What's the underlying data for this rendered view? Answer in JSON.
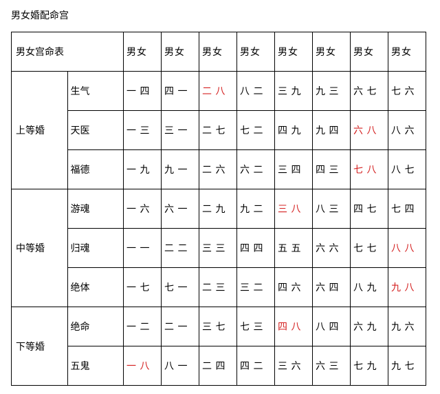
{
  "title": "男女婚配命宫",
  "table": {
    "header_left": "男女宫命表",
    "col_headers": [
      "男女",
      "男女",
      "男女",
      "男女",
      "男女",
      "男女",
      "男女",
      "男女"
    ],
    "groups": [
      {
        "name": "上等婚",
        "rows": [
          {
            "label": "生气",
            "cells": [
              {
                "t": "一 四"
              },
              {
                "t": "四 一"
              },
              {
                "t": "二 八",
                "red": true
              },
              {
                "t": "八 二"
              },
              {
                "t": "三 九"
              },
              {
                "t": "九 三"
              },
              {
                "t": "六 七"
              },
              {
                "t": "七 六"
              }
            ]
          },
          {
            "label": "天医",
            "cells": [
              {
                "t": "一 三"
              },
              {
                "t": "三 一"
              },
              {
                "t": "二 七"
              },
              {
                "t": "七 二"
              },
              {
                "t": "四 九"
              },
              {
                "t": "九 四"
              },
              {
                "t": "六 八",
                "red": true
              },
              {
                "t": "八 六"
              }
            ]
          },
          {
            "label": "福德",
            "cells": [
              {
                "t": "一 九"
              },
              {
                "t": "九 一"
              },
              {
                "t": "二 六"
              },
              {
                "t": "六 二"
              },
              {
                "t": "三 四"
              },
              {
                "t": "四 三"
              },
              {
                "t": "七 八",
                "red": true
              },
              {
                "t": "八 七"
              }
            ]
          }
        ]
      },
      {
        "name": "中等婚",
        "rows": [
          {
            "label": "游魂",
            "cells": [
              {
                "t": "一 六"
              },
              {
                "t": "六 一"
              },
              {
                "t": "二 九"
              },
              {
                "t": "九 二"
              },
              {
                "t": "三 八",
                "red": true
              },
              {
                "t": "八 三"
              },
              {
                "t": "四 七"
              },
              {
                "t": "七 四"
              }
            ]
          },
          {
            "label": "归魂",
            "cells": [
              {
                "t": "一 一"
              },
              {
                "t": "二 二"
              },
              {
                "t": "三 三"
              },
              {
                "t": "四 四"
              },
              {
                "t": "五 五"
              },
              {
                "t": "六 六"
              },
              {
                "t": "七 七"
              },
              {
                "t": "八 八",
                "red": true
              }
            ]
          },
          {
            "label": "绝体",
            "cells": [
              {
                "t": "一 七"
              },
              {
                "t": "七 一"
              },
              {
                "t": "二 三"
              },
              {
                "t": "三 二"
              },
              {
                "t": "四 六"
              },
              {
                "t": "六 四"
              },
              {
                "t": "八 九"
              },
              {
                "t": "九 八",
                "red": true
              }
            ]
          }
        ]
      },
      {
        "name": "下等婚",
        "rows": [
          {
            "label": "绝命",
            "cells": [
              {
                "t": "一 二"
              },
              {
                "t": "二 一"
              },
              {
                "t": "三 七"
              },
              {
                "t": "七 三"
              },
              {
                "t": "四 八",
                "red": true
              },
              {
                "t": "八 四"
              },
              {
                "t": "六 九"
              },
              {
                "t": "九 六"
              }
            ]
          },
          {
            "label": "五鬼",
            "cells": [
              {
                "t": "一 八",
                "red": true
              },
              {
                "t": "八 一"
              },
              {
                "t": "二 四"
              },
              {
                "t": "四 二"
              },
              {
                "t": "三 六"
              },
              {
                "t": "六 三"
              },
              {
                "t": "七 九"
              },
              {
                "t": "九 七"
              }
            ]
          }
        ]
      }
    ]
  }
}
